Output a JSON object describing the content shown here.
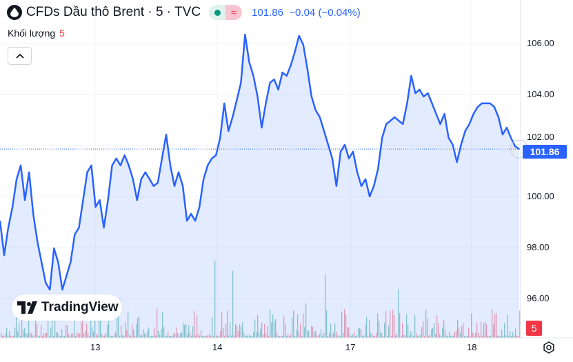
{
  "header": {
    "title": "CFDs Dầu thô Brent · 5 · TVC",
    "price": "101.86",
    "change": "−0.04",
    "change_pct": "(−0.04%)",
    "market_status": "open",
    "icons": [
      "oil-drop-icon",
      "market-open-dot-icon",
      "approx-icon"
    ]
  },
  "volume": {
    "label": "Khối lượng",
    "value": "5",
    "collapse_icon": "chevron-up-icon"
  },
  "branding": {
    "name": "TradingView"
  },
  "price_axis": {
    "ticks": [
      "106.00",
      "104.00",
      "102.00",
      "100.00",
      "98.00",
      "96.00"
    ],
    "current_price": "101.86",
    "volume_tag": "5"
  },
  "time_axis": {
    "ticks": [
      "13",
      "14",
      "17",
      "18"
    ]
  },
  "colors": {
    "line": "#2962ff",
    "up": "#089981",
    "down": "#f23645"
  },
  "chart_data": {
    "type": "area",
    "yticks": [
      106,
      104,
      102,
      100,
      98,
      96
    ],
    "current": 101.86,
    "xticks": [
      "13",
      "14",
      "17",
      "18"
    ],
    "values": [
      99.05,
      97.7,
      98.78,
      99.59,
      100.68,
      101.22,
      99.86,
      100.95,
      99.32,
      98.24,
      97.43,
      96.62,
      96.35,
      97.97,
      97.43,
      96.35,
      96.89,
      97.43,
      98.51,
      98.78,
      99.86,
      100.95,
      101.22,
      99.59,
      99.86,
      98.78,
      99.86,
      101.22,
      101.49,
      101.22,
      101.62,
      101.22,
      100.68,
      99.86,
      100.68,
      100.95,
      100.68,
      100.41,
      100.54,
      101.49,
      102.43,
      101.22,
      100.41,
      100.95,
      100.41,
      99.05,
      99.32,
      99.05,
      99.59,
      100.68,
      101.22,
      101.49,
      101.62,
      102.3,
      103.65,
      102.57,
      103.11,
      103.78,
      104.46,
      106.35,
      105.27,
      104.73,
      103.92,
      102.7,
      103.65,
      104.46,
      104.59,
      104.19,
      104.86,
      104.73,
      105.14,
      105.68,
      106.3,
      105.95,
      105.0,
      103.92,
      103.38,
      103.11,
      102.57,
      102.03,
      101.49,
      100.41,
      101.76,
      102.03,
      101.49,
      101.76,
      100.95,
      100.41,
      100.68,
      100.0,
      100.41,
      101.08,
      102.3,
      102.84,
      102.97,
      103.11,
      102.97,
      102.84,
      103.65,
      104.73,
      104.05,
      104.19,
      103.92,
      104.05,
      103.65,
      103.24,
      102.84,
      103.24,
      102.3,
      102.03,
      101.35,
      102.03,
      102.57,
      102.84,
      103.24,
      103.51,
      103.65,
      103.65,
      103.65,
      103.51,
      103.11,
      102.43,
      102.7,
      102.3,
      101.97,
      101.86
    ]
  }
}
